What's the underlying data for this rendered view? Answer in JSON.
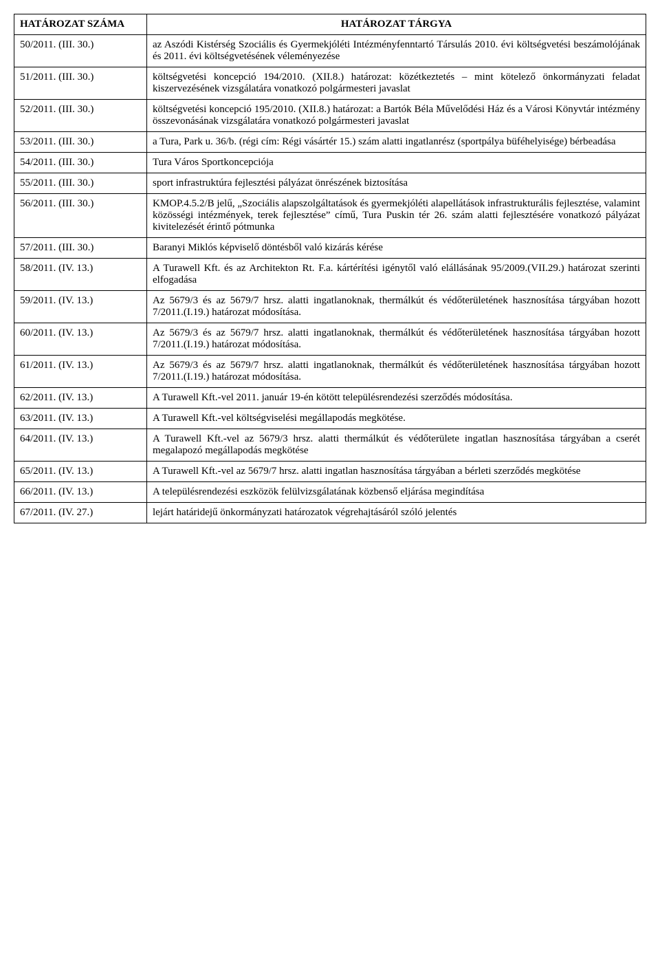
{
  "headers": {
    "number": "HATÁROZAT SZÁMA",
    "subject": "HATÁROZAT TÁRGYA"
  },
  "rows": [
    {
      "num": "50/2011. (III. 30.)",
      "subj": "az Aszódi Kistérség Szociális és Gyermekjóléti Intézményfenntartó Társulás 2010. évi költségvetési beszámolójának és 2011. évi költségvetésének véleményezése"
    },
    {
      "num": "51/2011. (III. 30.)",
      "subj": "költségvetési koncepció 194/2010. (XII.8.) határozat: közétkeztetés – mint kötelező önkormányzati feladat kiszervezésének vizsgálatára vonatkozó polgármesteri javaslat"
    },
    {
      "num": "52/2011. (III. 30.)",
      "subj": "költségvetési koncepció 195/2010. (XII.8.) határozat: a Bartók Béla Művelődési Ház és a Városi Könyvtár intézmény összevonásának vizsgálatára vonatkozó polgármesteri javaslat"
    },
    {
      "num": "53/2011. (III. 30.)",
      "subj": "a Tura, Park u. 36/b. (régi cím: Régi vásártér 15.) szám alatti ingatlanrész (sportpálya büféhelyisége) bérbeadása"
    },
    {
      "num": "54/2011. (III. 30.)",
      "subj": "Tura Város Sportkoncepciója"
    },
    {
      "num": "55/2011. (III. 30.)",
      "subj": "sport infrastruktúra fejlesztési pályázat önrészének biztosítása"
    },
    {
      "num": "56/2011. (III. 30.)",
      "subj": "KMOP.4.5.2/B jelű, „Szociális alapszolgáltatások és gyermekjóléti alapellátások infrastrukturális fejlesztése, valamint közösségi intézmények, terek fejlesztése” című, Tura Puskin tér 26. szám alatti fejlesztésére vonatkozó pályázat kivitelezését érintő pótmunka"
    },
    {
      "num": "57/2011. (III. 30.)",
      "subj": "Baranyi Miklós képviselő döntésből való kizárás kérése"
    },
    {
      "num": "58/2011. (IV. 13.)",
      "subj": "A Turawell Kft. és az Architekton Rt. F.a. kártérítési igénytől való elállásának 95/2009.(VII.29.) határozat szerinti elfogadása"
    },
    {
      "num": "59/2011. (IV. 13.)",
      "subj": "Az 5679/3 és az 5679/7 hrsz. alatti ingatlanoknak, thermálkút és védőterületének hasznosítása tárgyában hozott 7/2011.(I.19.) határozat módosítása."
    },
    {
      "num": "60/2011. (IV. 13.)",
      "subj": "Az 5679/3 és az 5679/7 hrsz. alatti ingatlanoknak, thermálkút és védőterületének hasznosítása tárgyában hozott 7/2011.(I.19.) határozat módosítása."
    },
    {
      "num": "61/2011. (IV. 13.)",
      "subj": "Az 5679/3 és az 5679/7 hrsz. alatti ingatlanoknak, thermálkút és védőterületének hasznosítása tárgyában hozott 7/2011.(I.19.) határozat módosítása."
    },
    {
      "num": "62/2011. (IV. 13.)",
      "subj": "A Turawell Kft.-vel 2011. január 19-én kötött településrendezési szerződés módosítása."
    },
    {
      "num": "63/2011. (IV. 13.)",
      "subj": "A Turawell Kft.-vel költségviselési megállapodás megkötése."
    },
    {
      "num": "64/2011. (IV. 13.)",
      "subj": "A Turawell Kft.-vel az 5679/3 hrsz. alatti thermálkút és védőterülete ingatlan hasznosítása tárgyában a cserét megalapozó megállapodás megkötése"
    },
    {
      "num": "65/2011. (IV. 13.)",
      "subj": "A Turawell Kft.-vel az 5679/7 hrsz. alatti ingatlan hasznosítása tárgyában a bérleti szerződés megkötése"
    },
    {
      "num": "66/2011. (IV. 13.)",
      "subj": "A településrendezési eszközök felülvizsgálatának közbenső eljárása megindítása"
    },
    {
      "num": "67/2011. (IV. 27.)",
      "subj": "lejárt határidejű önkormányzati határozatok végrehajtásáról szóló jelentés"
    }
  ],
  "style": {
    "font_family": "Times New Roman",
    "font_size_pt": 12,
    "text_color": "#000000",
    "background_color": "#ffffff",
    "border_color": "#000000",
    "col_number_width_pct": 21,
    "col_subject_width_pct": 79
  }
}
